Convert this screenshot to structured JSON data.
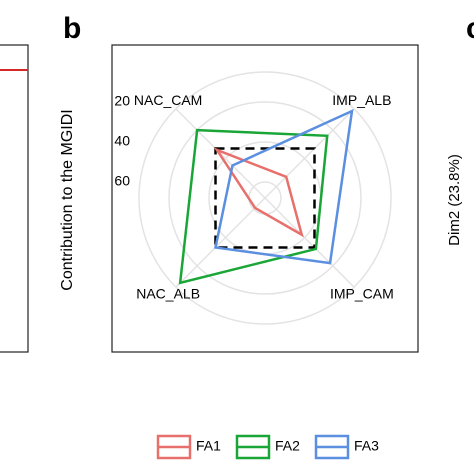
{
  "chart_data": {
    "type": "radar",
    "panel_label": "b",
    "ylabel": "Contribution to the MGIDI",
    "categories": [
      "NAC_CAM",
      "IMP_ALB",
      "IMP_CAM",
      "NAC_ALB"
    ],
    "ylim": [
      68,
      5
    ],
    "yticks": [
      20,
      40,
      60
    ],
    "grid": true,
    "legend": "bottom",
    "reference": {
      "values": [
        33,
        33,
        33,
        33
      ],
      "color": "#000000"
    },
    "series": [
      {
        "name": "FA1",
        "color": "#e8706c",
        "values": [
          34,
          53,
          42,
          61
        ]
      },
      {
        "name": "FA2",
        "color": "#1aa637",
        "values": [
          20,
          24,
          32,
          8
        ]
      },
      {
        "name": "FA3",
        "color": "#5b8fe0",
        "values": [
          45,
          6.5,
          22,
          33
        ]
      }
    ]
  },
  "neighbor_panel": {
    "label": "c",
    "axis_label": "Dim2 (23.8%)"
  }
}
